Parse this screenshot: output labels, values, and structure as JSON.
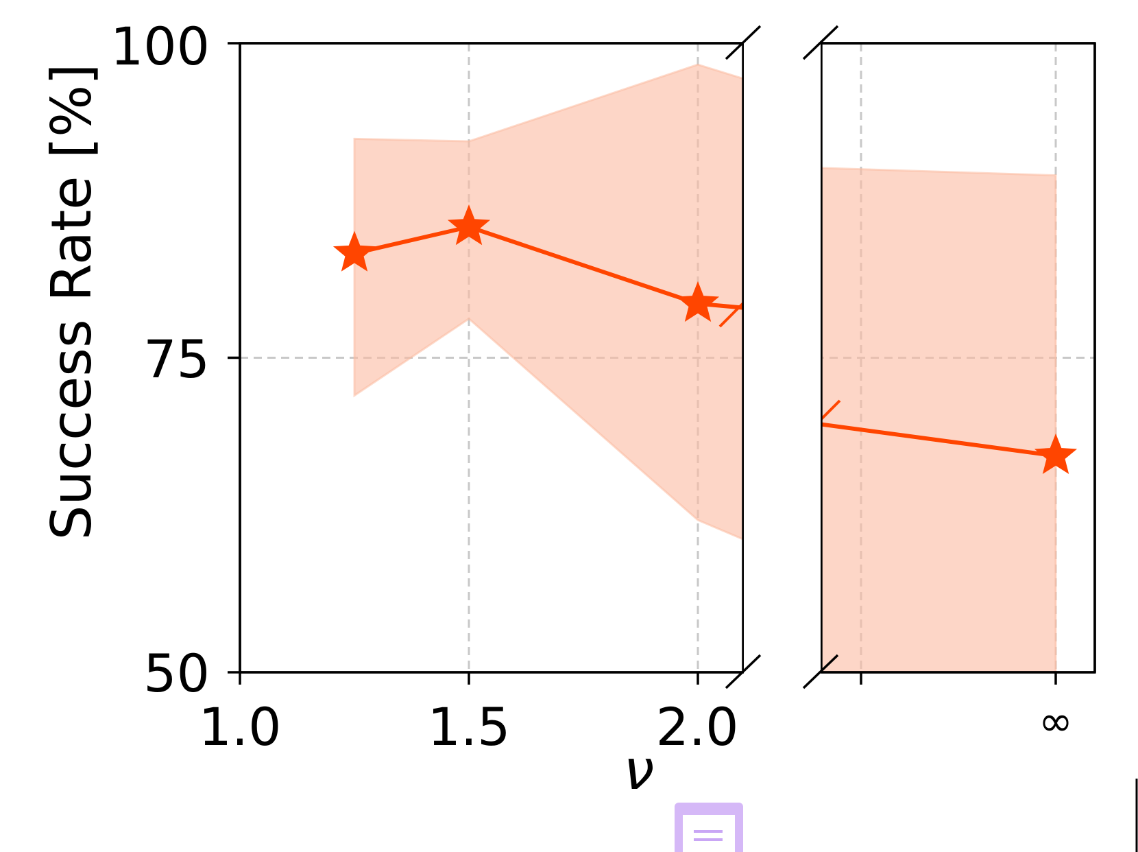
{
  "chart_data": {
    "type": "line",
    "title": "",
    "xlabel": "ν",
    "ylabel": "Success Rate [%]",
    "ylim": [
      50,
      100
    ],
    "grid": true,
    "axis_break": true,
    "x_ticks": [
      "1.0",
      "1.5",
      "2.0",
      "∞"
    ],
    "y_ticks": [
      "50",
      "75",
      "100"
    ],
    "series": [
      {
        "x": [
          "1.25",
          "1.5",
          "2.0",
          "∞"
        ],
        "values": [
          83.3,
          85.4,
          79.3,
          67.2
        ],
        "band_upper": [
          92.4,
          92.2,
          98.3,
          89.5
        ],
        "band_lower": [
          72.0,
          78.1,
          62.1,
          50.0
        ],
        "marker": "star"
      }
    ]
  },
  "colors": {
    "line": "#ff4500",
    "band": "#fcbba1",
    "grid": "#c8c8c8"
  },
  "icons": {
    "corner_badge": "document-icon"
  }
}
